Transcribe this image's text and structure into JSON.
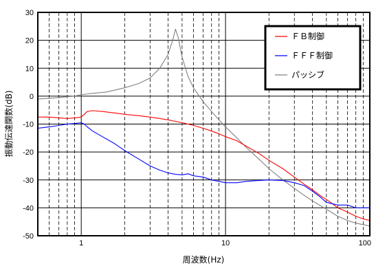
{
  "chart_data": {
    "type": "line",
    "xlabel": "周波数(Hz)",
    "ylabel": "振動伝達関数(dB)",
    "xscale": "log",
    "xlim": [
      0.5,
      100
    ],
    "ylim": [
      -50,
      30
    ],
    "x_tick_labels": [
      "1",
      "10",
      "100"
    ],
    "x_tick_values": [
      1,
      10,
      100
    ],
    "y_tick_values": [
      30,
      20,
      10,
      0,
      -10,
      -20,
      -30,
      -40,
      -50
    ],
    "y_tick_labels": [
      "30",
      "20",
      "10",
      "0",
      "-10",
      "-20",
      "-30",
      "-40",
      "-50"
    ],
    "grid": true,
    "legend_position": "top-right",
    "series": [
      {
        "name": "ＦＢ制御",
        "color": "#ff0000",
        "points": [
          [
            0.5,
            -7.5
          ],
          [
            0.6,
            -7.5
          ],
          [
            0.7,
            -7.8
          ],
          [
            0.8,
            -8
          ],
          [
            0.9,
            -7.8
          ],
          [
            1.0,
            -7.5
          ],
          [
            1.05,
            -6.5
          ],
          [
            1.1,
            -5.5
          ],
          [
            1.2,
            -5.2
          ],
          [
            1.4,
            -5.5
          ],
          [
            1.7,
            -6
          ],
          [
            2,
            -6.5
          ],
          [
            2.5,
            -7
          ],
          [
            3,
            -7.5
          ],
          [
            3.5,
            -8
          ],
          [
            4,
            -8.5
          ],
          [
            5,
            -9.5
          ],
          [
            6,
            -10.5
          ],
          [
            7,
            -11.5
          ],
          [
            8,
            -12.5
          ],
          [
            9,
            -13.5
          ],
          [
            10,
            -14.5
          ],
          [
            12,
            -16
          ],
          [
            14,
            -18
          ],
          [
            17,
            -20.5
          ],
          [
            20,
            -23
          ],
          [
            25,
            -26
          ],
          [
            30,
            -29
          ],
          [
            35,
            -31.5
          ],
          [
            40,
            -33.5
          ],
          [
            45,
            -35.5
          ],
          [
            50,
            -37
          ],
          [
            55,
            -38.5
          ],
          [
            60,
            -40
          ],
          [
            70,
            -41.5
          ],
          [
            80,
            -43
          ],
          [
            90,
            -44
          ],
          [
            100,
            -44.5
          ]
        ]
      },
      {
        "name": "ＦＦＦ制御",
        "color": "#0000ff",
        "points": [
          [
            0.5,
            -11.5
          ],
          [
            0.6,
            -11
          ],
          [
            0.7,
            -10.5
          ],
          [
            0.8,
            -10
          ],
          [
            0.9,
            -9.8
          ],
          [
            1.0,
            -9.5
          ],
          [
            1.05,
            -10
          ],
          [
            1.1,
            -11
          ],
          [
            1.2,
            -12.5
          ],
          [
            1.4,
            -14.5
          ],
          [
            1.7,
            -17
          ],
          [
            2,
            -19.5
          ],
          [
            2.5,
            -22.5
          ],
          [
            3,
            -25
          ],
          [
            3.5,
            -26.5
          ],
          [
            4,
            -27.5
          ],
          [
            4.5,
            -28
          ],
          [
            5,
            -28.2
          ],
          [
            5.5,
            -27.8
          ],
          [
            6,
            -28.5
          ],
          [
            7,
            -29
          ],
          [
            8,
            -30
          ],
          [
            9,
            -30.5
          ],
          [
            10,
            -31
          ],
          [
            12,
            -31
          ],
          [
            14,
            -30.5
          ],
          [
            17,
            -30.2
          ],
          [
            20,
            -30
          ],
          [
            25,
            -30.2
          ],
          [
            30,
            -31
          ],
          [
            35,
            -32
          ],
          [
            40,
            -34
          ],
          [
            45,
            -36
          ],
          [
            50,
            -38
          ],
          [
            60,
            -39
          ],
          [
            70,
            -39
          ],
          [
            80,
            -40
          ],
          [
            90,
            -40
          ],
          [
            100,
            -40
          ]
        ]
      },
      {
        "name": "パッシブ",
        "color": "#808080",
        "points": [
          [
            0.5,
            -1
          ],
          [
            0.6,
            -0.8
          ],
          [
            0.7,
            -0.5
          ],
          [
            0.8,
            -0.2
          ],
          [
            0.9,
            0
          ],
          [
            1.0,
            0.5
          ],
          [
            1.2,
            1
          ],
          [
            1.5,
            1.5
          ],
          [
            2,
            3
          ],
          [
            2.5,
            4.5
          ],
          [
            3,
            6.5
          ],
          [
            3.5,
            10
          ],
          [
            4,
            15
          ],
          [
            4.3,
            20
          ],
          [
            4.5,
            24
          ],
          [
            4.7,
            21
          ],
          [
            5,
            14
          ],
          [
            5.5,
            7
          ],
          [
            6,
            3
          ],
          [
            7,
            -2
          ],
          [
            8,
            -5.5
          ],
          [
            9,
            -8.5
          ],
          [
            10,
            -11
          ],
          [
            12,
            -15
          ],
          [
            14,
            -18.5
          ],
          [
            17,
            -22.5
          ],
          [
            20,
            -26
          ],
          [
            25,
            -30
          ],
          [
            30,
            -33
          ],
          [
            35,
            -35.5
          ],
          [
            40,
            -37.5
          ],
          [
            50,
            -40.5
          ],
          [
            60,
            -43
          ],
          [
            70,
            -44.5
          ],
          [
            80,
            -45.5
          ],
          [
            90,
            -46
          ],
          [
            100,
            -46.5
          ]
        ]
      }
    ]
  }
}
